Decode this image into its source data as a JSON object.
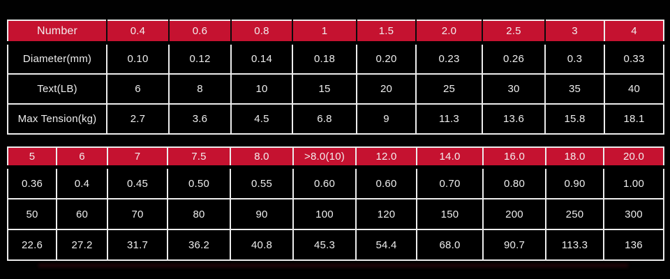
{
  "colors": {
    "header_red": "#c51230",
    "border_white": "#ededed",
    "header_text": "#f3edee",
    "cell_text": "#ededed",
    "background": "#000000"
  },
  "chart_data": [
    {
      "type": "table",
      "title": "Line size specification table (upper)",
      "columns": [
        "Number",
        "0.4",
        "0.6",
        "0.8",
        "1",
        "1.5",
        "2.0",
        "2.5",
        "3",
        "4"
      ],
      "rows": [
        [
          "Diameter(mm)",
          "0.10",
          "0.12",
          "0.14",
          "0.18",
          "0.20",
          "0.23",
          "0.26",
          "0.3",
          "0.33"
        ],
        [
          "Text(LB)",
          "6",
          "8",
          "10",
          "15",
          "20",
          "25",
          "30",
          "35",
          "40"
        ],
        [
          "Max Tension(kg)",
          "2.7",
          "3.6",
          "4.5",
          "6.8",
          "9",
          "11.3",
          "13.6",
          "15.8",
          "18.1"
        ]
      ],
      "row_labels_column": 0,
      "header_style": "red-band-black-separators",
      "grid": true
    },
    {
      "type": "table",
      "title": "Line size specification table (lower, continuation)",
      "columns": [
        "5",
        "6",
        "7",
        "7.5",
        "8.0",
        ">8.0(10)",
        "12.0",
        "14.0",
        "16.0",
        "18.0",
        "20.0"
      ],
      "rows": [
        [
          "0.36",
          "0.4",
          "0.45",
          "0.50",
          "0.55",
          "0.60",
          "0.60",
          "0.70",
          "0.80",
          "0.90",
          "1.00"
        ],
        [
          "50",
          "60",
          "70",
          "80",
          "90",
          "100",
          "120",
          "150",
          "200",
          "250",
          "300"
        ],
        [
          "22.6",
          "27.2",
          "31.7",
          "36.2",
          "40.8",
          "45.3",
          "54.4",
          "68.0",
          "90.7",
          "113.3",
          "136"
        ]
      ],
      "header_style": "red-band-white-separators",
      "grid": true
    }
  ]
}
